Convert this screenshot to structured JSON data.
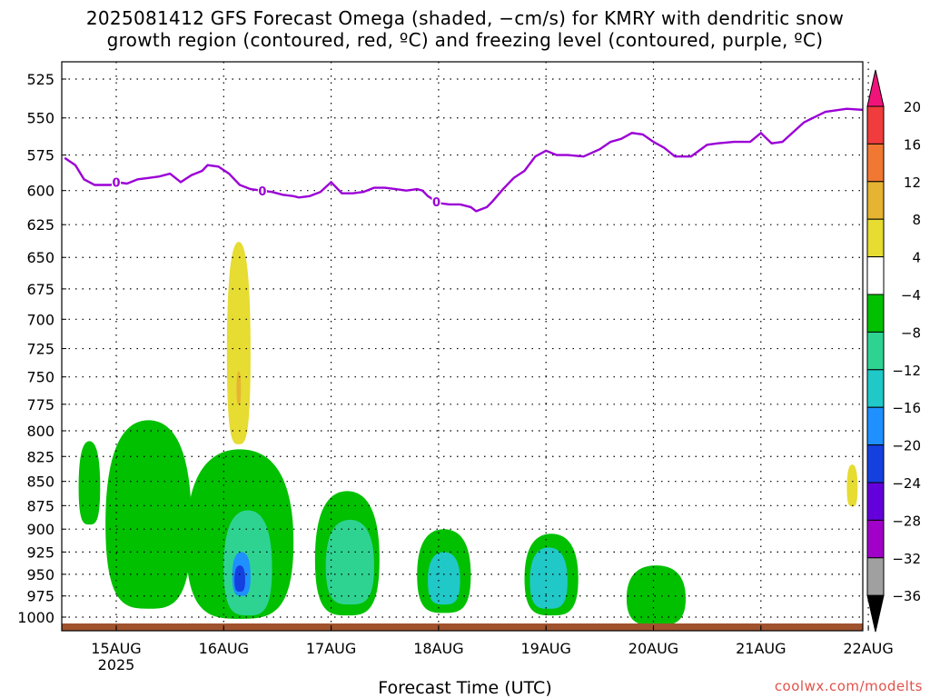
{
  "title_line1": "2025081412 GFS Forecast Omega (shaded, −cm/s) for KMRY with dendritic snow",
  "title_line2": "growth region (contoured, red, ºC) and freezing level (contoured, purple, ºC)",
  "xlabel": "Forecast Time (UTC)",
  "watermark": "coolwx.com/modelts",
  "chart_data": {
    "type": "heatmap",
    "x_ticks": [
      "15AUG",
      "16AUG",
      "17AUG",
      "18AUG",
      "19AUG",
      "20AUG",
      "21AUG",
      "22AUG"
    ],
    "x_year_label": "2025",
    "y_ticks": [
      525,
      550,
      575,
      600,
      625,
      650,
      675,
      700,
      725,
      750,
      775,
      800,
      825,
      850,
      875,
      900,
      925,
      950,
      975,
      1000
    ],
    "y_axis": "pressure_hPa_log_reversed",
    "grid": "dotted",
    "freezing_level_label": "0",
    "freezing_level_label_at_days": [
      0.0,
      1.36,
      2.98
    ],
    "freezing_level": {
      "day": [
        -0.48,
        -0.38,
        -0.3,
        -0.2,
        -0.05,
        0.0,
        0.1,
        0.2,
        0.3,
        0.4,
        0.5,
        0.6,
        0.7,
        0.8,
        0.85,
        0.95,
        1.05,
        1.15,
        1.25,
        1.35,
        1.45,
        1.55,
        1.65,
        1.7,
        1.8,
        1.9,
        2.0,
        2.1,
        2.2,
        2.3,
        2.4,
        2.5,
        2.6,
        2.7,
        2.8,
        2.85,
        2.9,
        3.0,
        3.1,
        3.2,
        3.3,
        3.35,
        3.45,
        3.5,
        3.6,
        3.7,
        3.8,
        3.9,
        4.0,
        4.1,
        4.2,
        4.35,
        4.5,
        4.6,
        4.7,
        4.8,
        4.9,
        5.0,
        5.1,
        5.2,
        5.35,
        5.5,
        5.6,
        5.75,
        5.9,
        6.0,
        6.1,
        6.2,
        6.4,
        6.6,
        6.8,
        7.0,
        7.15
      ],
      "level": [
        577,
        582,
        592,
        596,
        596,
        594,
        595,
        592,
        591,
        590,
        588,
        594,
        589,
        586,
        582,
        583,
        588,
        596,
        599,
        600,
        601,
        603,
        604,
        605,
        604,
        601,
        594,
        602,
        602,
        601,
        598,
        598,
        599,
        600,
        599,
        600,
        604,
        609,
        610,
        610,
        612,
        615,
        612,
        608,
        599,
        591,
        586,
        576,
        572,
        575,
        575,
        576,
        571,
        566,
        564,
        560,
        561,
        566,
        570,
        576,
        576,
        568,
        567,
        566,
        566,
        560,
        567,
        566,
        553,
        546,
        544,
        545,
        544
      ]
    },
    "omega_regions": [
      {
        "class": "-8 to -4",
        "color": "#00c000",
        "from_day": -0.35,
        "to_day": -0.15,
        "top_hPa": 810,
        "bottom_hPa": 895
      },
      {
        "class": "-8 to -4",
        "color": "#00c000",
        "from_day": -0.1,
        "to_day": 0.7,
        "top_hPa": 790,
        "bottom_hPa": 990
      },
      {
        "class": "-8 to -4",
        "color": "#00c000",
        "from_day": 0.65,
        "to_day": 1.65,
        "top_hPa": 818,
        "bottom_hPa": 1002
      },
      {
        "class": "-8 to -4",
        "color": "#00c000",
        "from_day": 1.85,
        "to_day": 2.45,
        "top_hPa": 860,
        "bottom_hPa": 998
      },
      {
        "class": "-8 to -4",
        "color": "#00c000",
        "from_day": 2.8,
        "to_day": 3.3,
        "top_hPa": 900,
        "bottom_hPa": 995
      },
      {
        "class": "-8 to -4",
        "color": "#00c000",
        "from_day": 3.8,
        "to_day": 4.3,
        "top_hPa": 905,
        "bottom_hPa": 998
      },
      {
        "class": "-8 to -4",
        "color": "#00c000",
        "from_day": 4.75,
        "to_day": 5.3,
        "top_hPa": 940,
        "bottom_hPa": 1010
      },
      {
        "class": "-12 to -8",
        "color": "#2ed392",
        "from_day": 1.0,
        "to_day": 1.45,
        "top_hPa": 880,
        "bottom_hPa": 998
      },
      {
        "class": "-12 to -8",
        "color": "#2ed392",
        "from_day": 1.95,
        "to_day": 2.4,
        "top_hPa": 890,
        "bottom_hPa": 985
      },
      {
        "class": "-16 to -12",
        "color": "#20c8c8",
        "from_day": 2.9,
        "to_day": 3.2,
        "top_hPa": 925,
        "bottom_hPa": 985
      },
      {
        "class": "-16 to -12",
        "color": "#20c8c8",
        "from_day": 3.85,
        "to_day": 4.2,
        "top_hPa": 920,
        "bottom_hPa": 990
      },
      {
        "class": "-20 to -16",
        "color": "#1e90ff",
        "from_day": 1.08,
        "to_day": 1.25,
        "top_hPa": 925,
        "bottom_hPa": 975
      },
      {
        "class": "-24 to -20",
        "color": "#1440e0",
        "from_day": 1.1,
        "to_day": 1.2,
        "top_hPa": 940,
        "bottom_hPa": 970
      },
      {
        "class": "4 to 8",
        "color": "#e6dc32",
        "from_day": 1.03,
        "to_day": 1.25,
        "top_hPa": 638,
        "bottom_hPa": 813
      },
      {
        "class": "8 to 12",
        "color": "#e6b432",
        "from_day": 1.12,
        "to_day": 1.16,
        "top_hPa": 745,
        "bottom_hPa": 775
      },
      {
        "class": "4 to 8",
        "color": "#e6dc32",
        "from_day": 6.8,
        "to_day": 6.9,
        "top_hPa": 833,
        "bottom_hPa": 876
      }
    ],
    "ground_color": "#a0522d",
    "colorbar": {
      "labels": [
        "20",
        "16",
        "12",
        "8",
        "4",
        "−4",
        "−8",
        "−12",
        "−16",
        "−20",
        "−24",
        "−28",
        "−32",
        "−36"
      ],
      "colors": [
        "#f0147a",
        "#f03c3c",
        "#f07832",
        "#e6b432",
        "#e6dc32",
        "#ffffff",
        "#00c000",
        "#2ed392",
        "#20c8c8",
        "#1e90ff",
        "#1440e0",
        "#6400dc",
        "#a000c8",
        "#a0a0a0",
        "#000000"
      ]
    },
    "colors": {
      "freezing_level": "#9b00d6",
      "grid": "#000000"
    }
  }
}
